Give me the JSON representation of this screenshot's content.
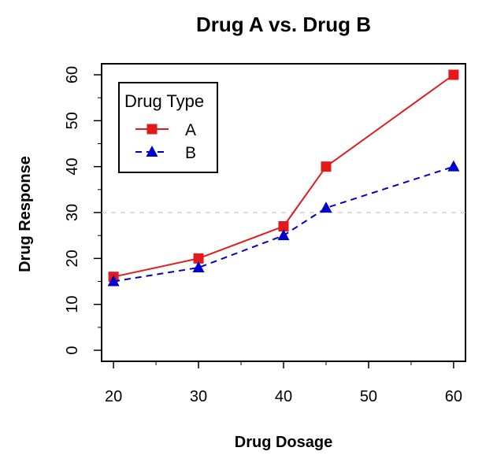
{
  "chart_data": {
    "type": "line",
    "title": "Drug A vs. Drug B",
    "xlabel": "Drug Dosage",
    "ylabel": "Drug Response",
    "x": [
      20,
      30,
      40,
      45,
      60
    ],
    "xticks": [
      20,
      30,
      40,
      50,
      60
    ],
    "yticks": [
      0,
      10,
      20,
      30,
      40,
      50,
      60
    ],
    "xlim": [
      18.6,
      61.4
    ],
    "ylim": [
      -2.4,
      62.4
    ],
    "reference_line": {
      "y": 30,
      "style": "dashed",
      "color": "#c8c8c8"
    },
    "series": [
      {
        "name": "A",
        "values": [
          16,
          20,
          27,
          40,
          60
        ],
        "color": "#e31a1c",
        "line_style": "solid",
        "marker": "square"
      },
      {
        "name": "B",
        "values": [
          15,
          18,
          25,
          31,
          40
        ],
        "color": "#0000cc",
        "line_style": "dashed",
        "marker": "triangle"
      }
    ],
    "legend": {
      "title": "Drug Type",
      "position": "top-left"
    }
  }
}
